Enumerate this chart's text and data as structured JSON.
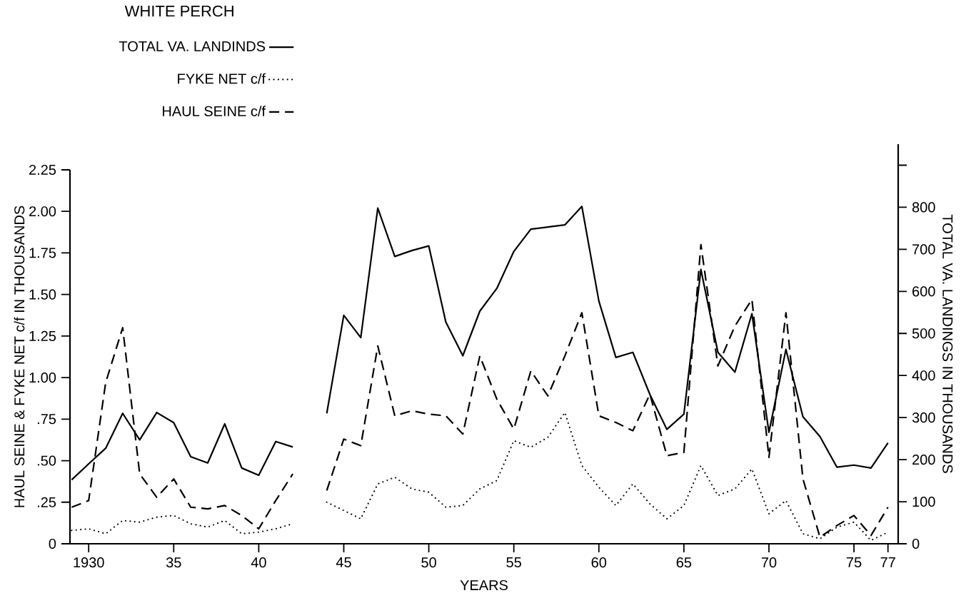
{
  "chart_data": {
    "type": "line",
    "title": "WHITE PERCH",
    "xlabel": "YEARS",
    "ylabel": "HAUL SEINE & FYKE NET c/f IN THOUSANDS",
    "y2label": "TOTAL VA. LANDINGS IN THOUSANDS",
    "x": [
      1929,
      1930,
      1931,
      1932,
      1933,
      1934,
      1935,
      1936,
      1937,
      1938,
      1939,
      1940,
      1941,
      1942,
      1943,
      1944,
      1945,
      1946,
      1947,
      1948,
      1949,
      1950,
      1951,
      1952,
      1953,
      1954,
      1955,
      1956,
      1957,
      1958,
      1959,
      1960,
      1961,
      1962,
      1963,
      1964,
      1965,
      1966,
      1967,
      1968,
      1969,
      1970,
      1971,
      1972,
      1973,
      1974,
      1975,
      1976,
      1977
    ],
    "series": [
      {
        "name": "TOTAL VA. LANDINDS",
        "color": "#000000",
        "line_style": "solid",
        "axis": "y2",
        "values": [
          152,
          190,
          227,
          310,
          247,
          312,
          288,
          207,
          192,
          285,
          180,
          163,
          243,
          230,
          null,
          310,
          543,
          490,
          798,
          683,
          697,
          708,
          527,
          447,
          553,
          607,
          695,
          748,
          753,
          758,
          802,
          577,
          443,
          455,
          355,
          272,
          308,
          652,
          455,
          408,
          547,
          265,
          462,
          302,
          255,
          182,
          187,
          180,
          240
        ]
      },
      {
        "name": "FYKE NET  c/f",
        "color": "#000000",
        "line_style": "dotted",
        "values": [
          0.08,
          0.09,
          0.06,
          0.14,
          0.13,
          0.16,
          0.17,
          0.12,
          0.1,
          0.14,
          0.06,
          0.07,
          0.09,
          0.12,
          null,
          0.25,
          0.2,
          0.15,
          0.36,
          0.4,
          0.33,
          0.31,
          0.22,
          0.23,
          0.33,
          0.38,
          0.62,
          0.58,
          0.64,
          0.79,
          0.47,
          0.34,
          0.23,
          0.36,
          0.24,
          0.15,
          0.23,
          0.47,
          0.29,
          0.33,
          0.45,
          0.18,
          0.26,
          0.06,
          0.03,
          0.1,
          0.13,
          0.02,
          0.07
        ]
      },
      {
        "name": "HAUL SEINE c/f",
        "color": "#000000",
        "line_style": "dashed",
        "values": [
          0.22,
          0.26,
          0.97,
          1.3,
          0.42,
          0.28,
          0.39,
          0.22,
          0.21,
          0.23,
          0.17,
          0.09,
          0.26,
          0.42,
          null,
          0.32,
          0.63,
          0.59,
          1.19,
          0.77,
          0.8,
          0.78,
          0.77,
          0.66,
          1.13,
          0.87,
          0.69,
          1.04,
          0.89,
          1.13,
          1.39,
          0.77,
          0.73,
          0.68,
          0.9,
          0.53,
          0.55,
          1.8,
          1.07,
          1.31,
          1.47,
          0.52,
          1.39,
          0.39,
          0.04,
          0.11,
          0.17,
          0.05,
          0.22
        ]
      }
    ],
    "xlim": [
      1928.9,
      1977.6
    ],
    "xticks": [
      1930,
      {
        "value": 1935,
        "label": "35"
      },
      {
        "value": 1940,
        "label": "40"
      },
      {
        "value": 1945,
        "label": "45"
      },
      {
        "value": 1950,
        "label": "50"
      },
      {
        "value": 1955,
        "label": "55"
      },
      {
        "value": 1960,
        "label": "60"
      },
      {
        "value": 1965,
        "label": "65"
      },
      {
        "value": 1970,
        "label": "70"
      },
      {
        "value": 1975,
        "label": "75"
      },
      {
        "value": 1977,
        "label": "77"
      }
    ],
    "ylim": [
      0,
      2.25
    ],
    "yticks": [
      0,
      {
        "value": 0.25,
        "label": ".25"
      },
      {
        "value": 0.5,
        "label": ".50"
      },
      {
        "value": 0.75,
        "label": ".75"
      },
      {
        "value": 1.0,
        "label": "1.00"
      },
      1.25,
      {
        "value": 1.5,
        "label": "1.50"
      },
      1.75,
      {
        "value": 2.0,
        "label": "2.00"
      },
      2.25
    ],
    "y2lim": [
      0,
      950
    ],
    "y2ticks": [
      0,
      100,
      200,
      300,
      400,
      500,
      600,
      700,
      800,
      {
        "value": 900,
        "label": null
      }
    ],
    "legend": "top left"
  }
}
